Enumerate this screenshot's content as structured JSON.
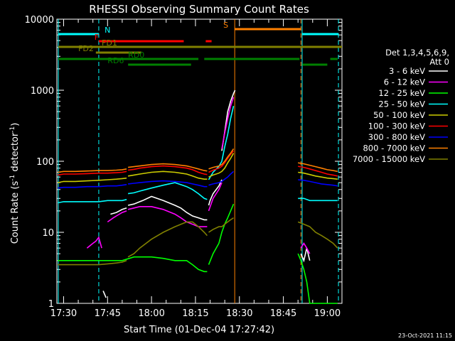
{
  "chart_data": {
    "type": "line",
    "title": "RHESSI Observing Summary Count Rates",
    "xlabel": "Start Time (01-Dec-04 17:27:42)",
    "ylabel_main": "Count Rate (s",
    "ylabel_sup": "-1",
    "ylabel_rest": " detector",
    "ylabel_sup2": "-1",
    "ylabel_close": ")",
    "yscale": "log",
    "ylim": [
      1,
      10000
    ],
    "xlim_minutes": [
      27.7,
      125
    ],
    "x_ticks": [
      {
        "label": "17:30",
        "min": 30
      },
      {
        "label": "17:45",
        "min": 45
      },
      {
        "label": "18:00",
        "min": 60
      },
      {
        "label": "18:15",
        "min": 75
      },
      {
        "label": "18:30",
        "min": 90
      },
      {
        "label": "18:45",
        "min": 105
      },
      {
        "label": "19:00",
        "min": 120
      }
    ],
    "y_ticks": [
      {
        "label": "1",
        "v": 1
      },
      {
        "label": "10",
        "v": 10
      },
      {
        "label": "100",
        "v": 100
      },
      {
        "label": "1000",
        "v": 1000
      },
      {
        "label": "10000",
        "v": 10000
      }
    ],
    "legend_header": [
      "Det 1,3,4,5,6,9,",
      "Att 0"
    ],
    "series": [
      {
        "name": "3 - 6 keV",
        "color": "#ffffff",
        "segments": [
          {
            "x": [
              43.5,
              44.5
            ],
            "y": [
              1.5,
              1.2
            ]
          },
          {
            "x": [
              46,
              48,
              50,
              51.5
            ],
            "y": [
              18,
              19,
              21,
              22
            ]
          },
          {
            "x": [
              52,
              54,
              56,
              57,
              60,
              64,
              68,
              70,
              72,
              74,
              76,
              78,
              79
            ],
            "y": [
              24,
              25,
              27,
              28,
              32,
              28,
              24,
              22,
              19,
              17,
              16,
              15,
              15
            ]
          },
          {
            "x": [
              79.5,
              80,
              81,
              83,
              84
            ],
            "y": [
              24,
              28,
              35,
              45,
              55
            ]
          },
          {
            "x": [
              84,
              85,
              86,
              87,
              88,
              88.5
            ],
            "y": [
              140,
              260,
              500,
              700,
              900,
              1000
            ]
          },
          {
            "x": [
              111,
              112,
              113,
              114
            ],
            "y": [
              5,
              4,
              6,
              4
            ]
          }
        ]
      },
      {
        "name": "6 - 12 keV",
        "color": "#ff00ff",
        "segments": [
          {
            "x": [
              38,
              40,
              41,
              42,
              43
            ],
            "y": [
              6,
              7,
              7.5,
              8.5,
              6
            ]
          },
          {
            "x": [
              45,
              47,
              48,
              50,
              51.5
            ],
            "y": [
              14,
              16,
              17,
              19,
              20
            ]
          },
          {
            "x": [
              52,
              54,
              56,
              60,
              64,
              68,
              70,
              72,
              74,
              76,
              78,
              79
            ],
            "y": [
              21,
              22,
              23,
              23,
              21,
              18,
              16,
              14,
              13,
              12,
              12,
              12
            ]
          },
          {
            "x": [
              79.5,
              81,
              83,
              84
            ],
            "y": [
              20,
              30,
              40,
              50
            ]
          },
          {
            "x": [
              84,
              85,
              86,
              87,
              88
            ],
            "y": [
              150,
              250,
              400,
              600,
              800
            ]
          },
          {
            "x": [
              111,
              112,
              113,
              114
            ],
            "y": [
              6,
              7,
              6,
              5
            ]
          }
        ]
      },
      {
        "name": "12 - 25 keV",
        "color": "#00ff00",
        "segments": [
          {
            "x": [
              28,
              30,
              34,
              38,
              42,
              45,
              48,
              50,
              54,
              58,
              60,
              64,
              68,
              72,
              74,
              76,
              78,
              79
            ],
            "y": [
              4,
              4,
              4,
              4,
              4,
              4,
              4,
              4,
              4.5,
              4.5,
              4.5,
              4.3,
              4,
              4,
              3.5,
              3,
              2.8,
              2.8
            ]
          },
          {
            "x": [
              79.5,
              81,
              83,
              84,
              85,
              86,
              87,
              88
            ],
            "y": [
              3.5,
              5,
              7,
              10,
              13,
              16,
              20,
              25
            ]
          },
          {
            "x": [
              110,
              111,
              112,
              113,
              114,
              116,
              118,
              120,
              122,
              123.5
            ],
            "y": [
              5,
              4,
              3,
              2,
              1,
              1,
              1,
              1,
              1,
              1
            ]
          }
        ]
      },
      {
        "name": "25 - 50 keV",
        "color": "#00ffff",
        "segments": [
          {
            "x": [
              28,
              30,
              34,
              38,
              42,
              45,
              48,
              50,
              51.5
            ],
            "y": [
              26,
              27,
              27,
              27,
              27,
              28,
              28,
              28,
              29
            ]
          },
          {
            "x": [
              52,
              54,
              56,
              60,
              64,
              68,
              72,
              74,
              76,
              78,
              79
            ],
            "y": [
              35,
              36,
              38,
              42,
              46,
              50,
              44,
              40,
              35,
              30,
              29
            ]
          },
          {
            "x": [
              79.5,
              81,
              83,
              84,
              85,
              86,
              87,
              88
            ],
            "y": [
              55,
              70,
              85,
              100,
              160,
              240,
              400,
              600
            ]
          },
          {
            "x": [
              110,
              112,
              114,
              116,
              118,
              120,
              122,
              123.5
            ],
            "y": [
              30,
              30,
              28,
              28,
              28,
              28,
              28,
              28
            ]
          }
        ]
      },
      {
        "name": "50 - 100 keV",
        "color": "#cccc00",
        "segments": [
          {
            "x": [
              28,
              30,
              34,
              38,
              42,
              45,
              48,
              50,
              51.5
            ],
            "y": [
              50,
              52,
              52,
              53,
              54,
              55,
              56,
              57,
              58
            ]
          },
          {
            "x": [
              52,
              54,
              56,
              60,
              64,
              68,
              72,
              74,
              76,
              78,
              79
            ],
            "y": [
              62,
              64,
              66,
              70,
              72,
              70,
              66,
              62,
              58,
              56,
              56
            ]
          },
          {
            "x": [
              79.5,
              81,
              83,
              84,
              85,
              86,
              87,
              88
            ],
            "y": [
              60,
              64,
              68,
              72,
              80,
              95,
              110,
              130
            ]
          },
          {
            "x": [
              110,
              112,
              114,
              116,
              118,
              120,
              122,
              123.5
            ],
            "y": [
              70,
              68,
              65,
              62,
              60,
              58,
              57,
              56
            ]
          }
        ]
      },
      {
        "name": "100 - 300 keV",
        "color": "#ff0000",
        "segments": [
          {
            "x": [
              28,
              30,
              34,
              38,
              42,
              45,
              48,
              50,
              51.5
            ],
            "y": [
              64,
              66,
              66,
              67,
              68,
              68,
              69,
              70,
              72
            ]
          },
          {
            "x": [
              52,
              54,
              56,
              60,
              64,
              68,
              72,
              74,
              76,
              78,
              79
            ],
            "y": [
              75,
              77,
              80,
              84,
              86,
              84,
              80,
              76,
              70,
              66,
              65
            ]
          },
          {
            "x": [
              79.5,
              81,
              83,
              84,
              85,
              86,
              87,
              88
            ],
            "y": [
              70,
              75,
              80,
              85,
              95,
              110,
              125,
              140
            ]
          },
          {
            "x": [
              110,
              112,
              114,
              116,
              118,
              120,
              122,
              123.5
            ],
            "y": [
              85,
              82,
              78,
              74,
              70,
              66,
              64,
              62
            ]
          }
        ]
      },
      {
        "name": "300 - 800 keV",
        "color": "#0000ff",
        "segments": [
          {
            "x": [
              28,
              30,
              34,
              38,
              42,
              45,
              48,
              50,
              51.5
            ],
            "y": [
              42,
              43,
              43,
              44,
              44,
              45,
              45,
              46,
              47
            ]
          },
          {
            "x": [
              52,
              54,
              56,
              60,
              64,
              68,
              72,
              74,
              76,
              78,
              79
            ],
            "y": [
              48,
              49,
              50,
              52,
              53,
              52,
              50,
              48,
              46,
              44,
              44
            ]
          },
          {
            "x": [
              79.5,
              81,
              83,
              84,
              85,
              86,
              87,
              88
            ],
            "y": [
              46,
              48,
              50,
              52,
              56,
              60,
              66,
              72
            ]
          },
          {
            "x": [
              110,
              112,
              114,
              116,
              118,
              120,
              122,
              123.5
            ],
            "y": [
              55,
              54,
              52,
              50,
              48,
              47,
              46,
              45
            ]
          }
        ]
      },
      {
        "name": "800 - 7000 keV",
        "color": "#ff8000",
        "segments": [
          {
            "x": [
              28,
              30,
              34,
              38,
              42,
              45,
              48,
              50,
              51.5
            ],
            "y": [
              70,
              72,
              72,
              73,
              74,
              74,
              75,
              76,
              78
            ]
          },
          {
            "x": [
              52,
              54,
              56,
              60,
              64,
              68,
              72,
              74,
              76,
              78,
              79
            ],
            "y": [
              82,
              84,
              86,
              90,
              92,
              90,
              86,
              82,
              78,
              74,
              73
            ]
          },
          {
            "x": [
              79.5,
              81,
              83,
              84,
              85,
              86,
              87,
              88
            ],
            "y": [
              78,
              82,
              86,
              90,
              100,
              115,
              130,
              150
            ]
          },
          {
            "x": [
              110,
              112,
              114,
              116,
              118,
              120,
              122,
              123.5
            ],
            "y": [
              95,
              92,
              88,
              84,
              80,
              76,
              74,
              72
            ]
          }
        ]
      },
      {
        "name": "7000 - 15000 keV",
        "color": "#808000",
        "segments": [
          {
            "x": [
              28,
              30,
              34,
              38,
              42,
              45,
              48,
              50,
              51.5
            ],
            "y": [
              3.5,
              3.5,
              3.5,
              3.5,
              3.5,
              3.6,
              3.7,
              3.8,
              4
            ]
          },
          {
            "x": [
              52,
              54,
              56,
              60,
              64,
              68,
              72,
              74,
              76,
              78,
              79
            ],
            "y": [
              4.5,
              5,
              6,
              8,
              10,
              12,
              14,
              14,
              12,
              10,
              9
            ]
          },
          {
            "x": [
              79.5,
              81,
              83,
              84,
              85,
              86,
              87,
              88
            ],
            "y": [
              10,
              11,
              12,
              12,
              13,
              14,
              15,
              16
            ]
          },
          {
            "x": [
              110,
              112,
              114,
              116,
              118,
              120,
              122,
              123.5
            ],
            "y": [
              14,
              13,
              12,
              10,
              9,
              8,
              7,
              6
            ]
          }
        ]
      }
    ],
    "vertical_lines": [
      {
        "min": 28.2,
        "color": "#00ffff",
        "style": "solid"
      },
      {
        "min": 42.0,
        "color": "#00ffff",
        "style": "dash"
      },
      {
        "min": 88.4,
        "color": "#ff8000",
        "style": "solid"
      },
      {
        "min": 111.0,
        "color": "#ff8000",
        "style": "dash"
      },
      {
        "min": 111.4,
        "color": "#00ffff",
        "style": "solid"
      },
      {
        "min": 123.8,
        "color": "#00ffff",
        "style": "dash"
      }
    ],
    "state_bars": [
      {
        "label": "N",
        "color": "#00ffff",
        "y": 48,
        "label_x_min": 44.0,
        "spans": [
          [
            28.2,
            42.0
          ],
          [
            111.4,
            123.8
          ]
        ]
      },
      {
        "label": "S",
        "color": "#ff8000",
        "y": 41,
        "label_x_min": 84.5,
        "spans": [
          [
            88.4,
            111.0
          ]
        ]
      },
      {
        "label": "F",
        "color": "#ff0000",
        "y": 58,
        "label_x_min": 40.5,
        "spans": [
          [
            42.0,
            71.0
          ],
          [
            78.5,
            80.5
          ]
        ]
      },
      {
        "label": "FD1",
        "color": "#808000",
        "y": 66,
        "label_x_min": 43.0,
        "spans": [
          [
            28.2,
            125.0
          ]
        ]
      },
      {
        "label": "FD2",
        "color": "#808000",
        "y": 74,
        "label_x_min": 35.0,
        "spans": [
          [
            41.0,
            56.5
          ]
        ]
      },
      {
        "label": "RD0",
        "color": "#008000",
        "y": 83,
        "label_x_min": 52.0,
        "spans": [
          [
            28.2,
            76.0
          ],
          [
            78.0,
            110.5
          ],
          [
            121.0,
            123.5
          ]
        ]
      },
      {
        "label": "RD6",
        "color": "#008000",
        "y": 91,
        "label_x_min": 45.0,
        "spans": [
          [
            52.0,
            73.5
          ],
          [
            111.5,
            120.0
          ]
        ]
      }
    ]
  },
  "timestamp": "23-Oct-2021 11:15"
}
